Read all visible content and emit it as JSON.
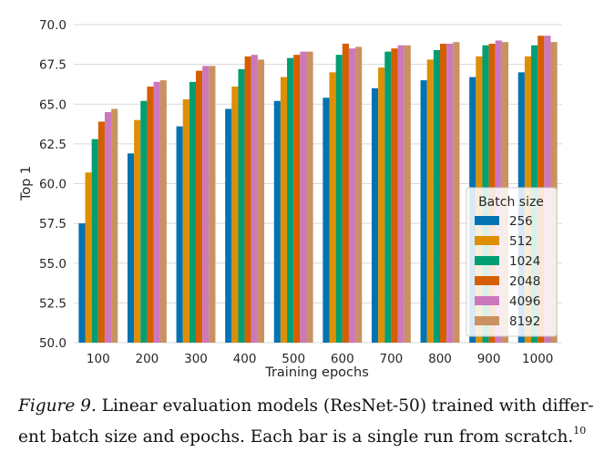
{
  "chart_data": {
    "type": "bar",
    "xlabel": "Training epochs",
    "ylabel": "Top 1",
    "ylim": [
      50.0,
      70.0
    ],
    "yticks": [
      "50.0",
      "52.5",
      "55.0",
      "57.5",
      "60.0",
      "62.5",
      "65.0",
      "67.5",
      "70.0"
    ],
    "categories": [
      "100",
      "200",
      "300",
      "400",
      "500",
      "600",
      "700",
      "800",
      "900",
      "1000"
    ],
    "grid": true,
    "legend": {
      "title": "Batch size",
      "placement": "lower-right"
    },
    "series": [
      {
        "name": "256",
        "color": "#0173b2",
        "values": [
          57.5,
          61.9,
          63.6,
          64.7,
          65.2,
          65.4,
          66.0,
          66.5,
          66.7,
          67.0
        ]
      },
      {
        "name": "512",
        "color": "#de8f05",
        "values": [
          60.7,
          64.0,
          65.3,
          66.1,
          66.7,
          67.0,
          67.3,
          67.8,
          68.0,
          68.0
        ]
      },
      {
        "name": "1024",
        "color": "#029e73",
        "values": [
          62.8,
          65.2,
          66.4,
          67.2,
          67.9,
          68.1,
          68.3,
          68.4,
          68.7,
          68.7
        ]
      },
      {
        "name": "2048",
        "color": "#d55e00",
        "values": [
          63.9,
          66.1,
          67.1,
          68.0,
          68.1,
          68.8,
          68.5,
          68.8,
          68.8,
          69.3
        ]
      },
      {
        "name": "4096",
        "color": "#cc78bc",
        "values": [
          64.5,
          66.4,
          67.4,
          68.1,
          68.3,
          68.5,
          68.7,
          68.8,
          69.0,
          69.3
        ]
      },
      {
        "name": "8192",
        "color": "#ca9161",
        "values": [
          64.7,
          66.5,
          67.4,
          67.8,
          68.3,
          68.6,
          68.7,
          68.9,
          68.9,
          68.9
        ]
      }
    ]
  },
  "caption": {
    "figure_label": "Figure 9.",
    "line1_text": " Linear evaluation models (ResNet-50) trained with differ-",
    "line2_text": "ent batch size and epochs. Each bar is a single run from scratch.",
    "footnote_mark": "10"
  }
}
